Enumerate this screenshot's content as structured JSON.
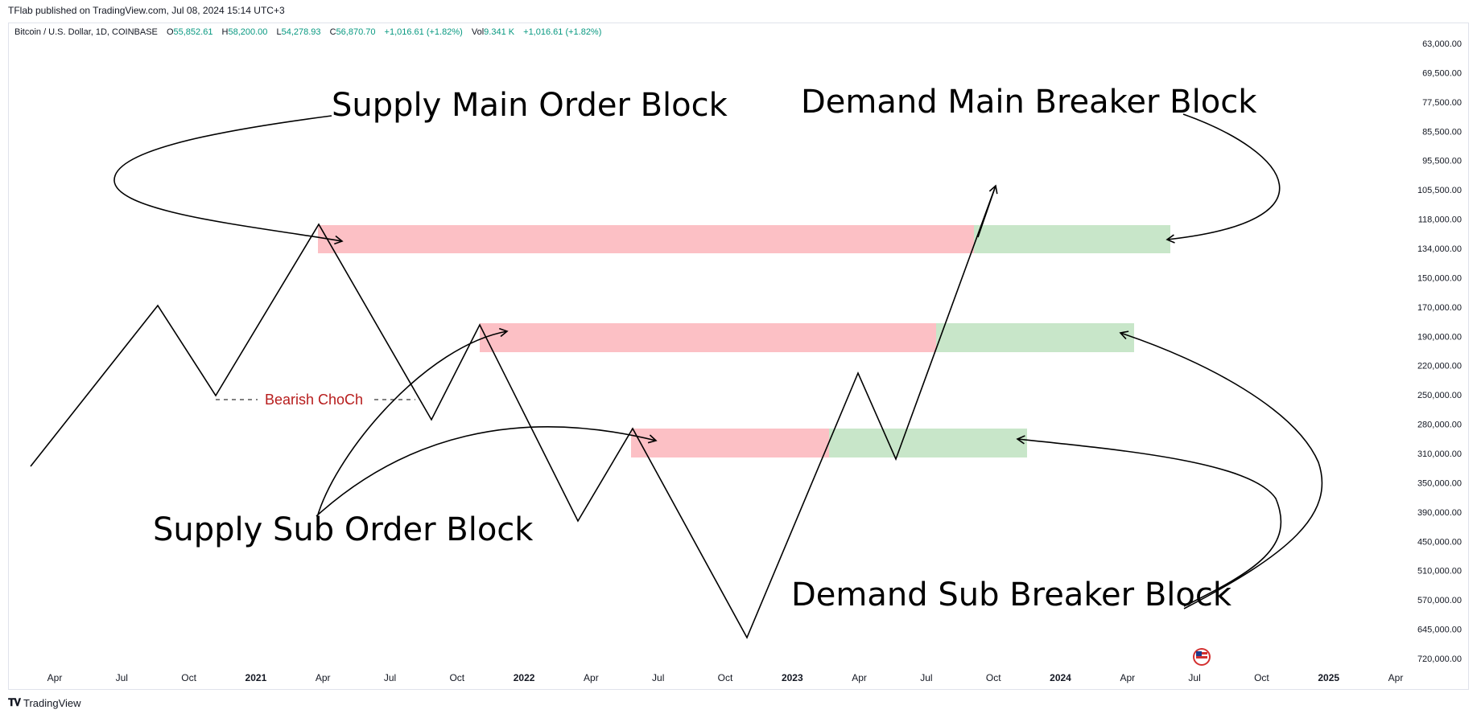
{
  "header": {
    "publish_text": "TFlab published on TradingView.com, Jul 08, 2024 15:14 UTC+3"
  },
  "legend": {
    "symbol": "Bitcoin / U.S. Dollar, 1D, COINBASE",
    "open_label": "O",
    "open": "55,852.61",
    "high_label": "H",
    "high": "58,200.00",
    "low_label": "L",
    "low": "54,278.93",
    "close_label": "C",
    "close": "56,870.70",
    "change": "+1,016.61 (+1.82%)",
    "vol_label": "Vol",
    "vol": "9.341 K",
    "vol_change": "+1,016.61 (+1.82%)",
    "value_color": "#089981"
  },
  "footer": {
    "brand": "TradingView"
  },
  "chart_data": {
    "type": "line",
    "x_ticks": [
      "Apr",
      "Jul",
      "Oct",
      "2021",
      "Apr",
      "Jul",
      "Oct",
      "2022",
      "Apr",
      "Jul",
      "Oct",
      "2023",
      "Apr",
      "Jul",
      "Oct",
      "2024",
      "Apr",
      "Jul",
      "Oct",
      "2025",
      "Apr"
    ],
    "y_ticks": [
      "63,000.00",
      "69,500.00",
      "77,500.00",
      "85,500.00",
      "95,500.00",
      "105,500.00",
      "118,000.00",
      "134,000.00",
      "150,000.00",
      "170,000.00",
      "190,000.00",
      "220,000.00",
      "250,000.00",
      "280,000.00",
      "310,000.00",
      "350,000.00",
      "390,000.00",
      "450,000.00",
      "510,000.00",
      "570,000.00",
      "645,000.00",
      "720,000.00"
    ],
    "y_scale": "inverted",
    "annotations": {
      "supply_main": "Supply Main Order Block",
      "demand_main": "Demand Main Breaker Block",
      "supply_sub": "Supply Sub Order Block",
      "demand_sub": "Demand Sub Breaker Block",
      "choch": "Bearish ChoCh"
    },
    "colors": {
      "supply": "#fcc0c5",
      "demand": "#c8e6c9",
      "line": "#000000",
      "choch": "#b71c1c"
    }
  }
}
